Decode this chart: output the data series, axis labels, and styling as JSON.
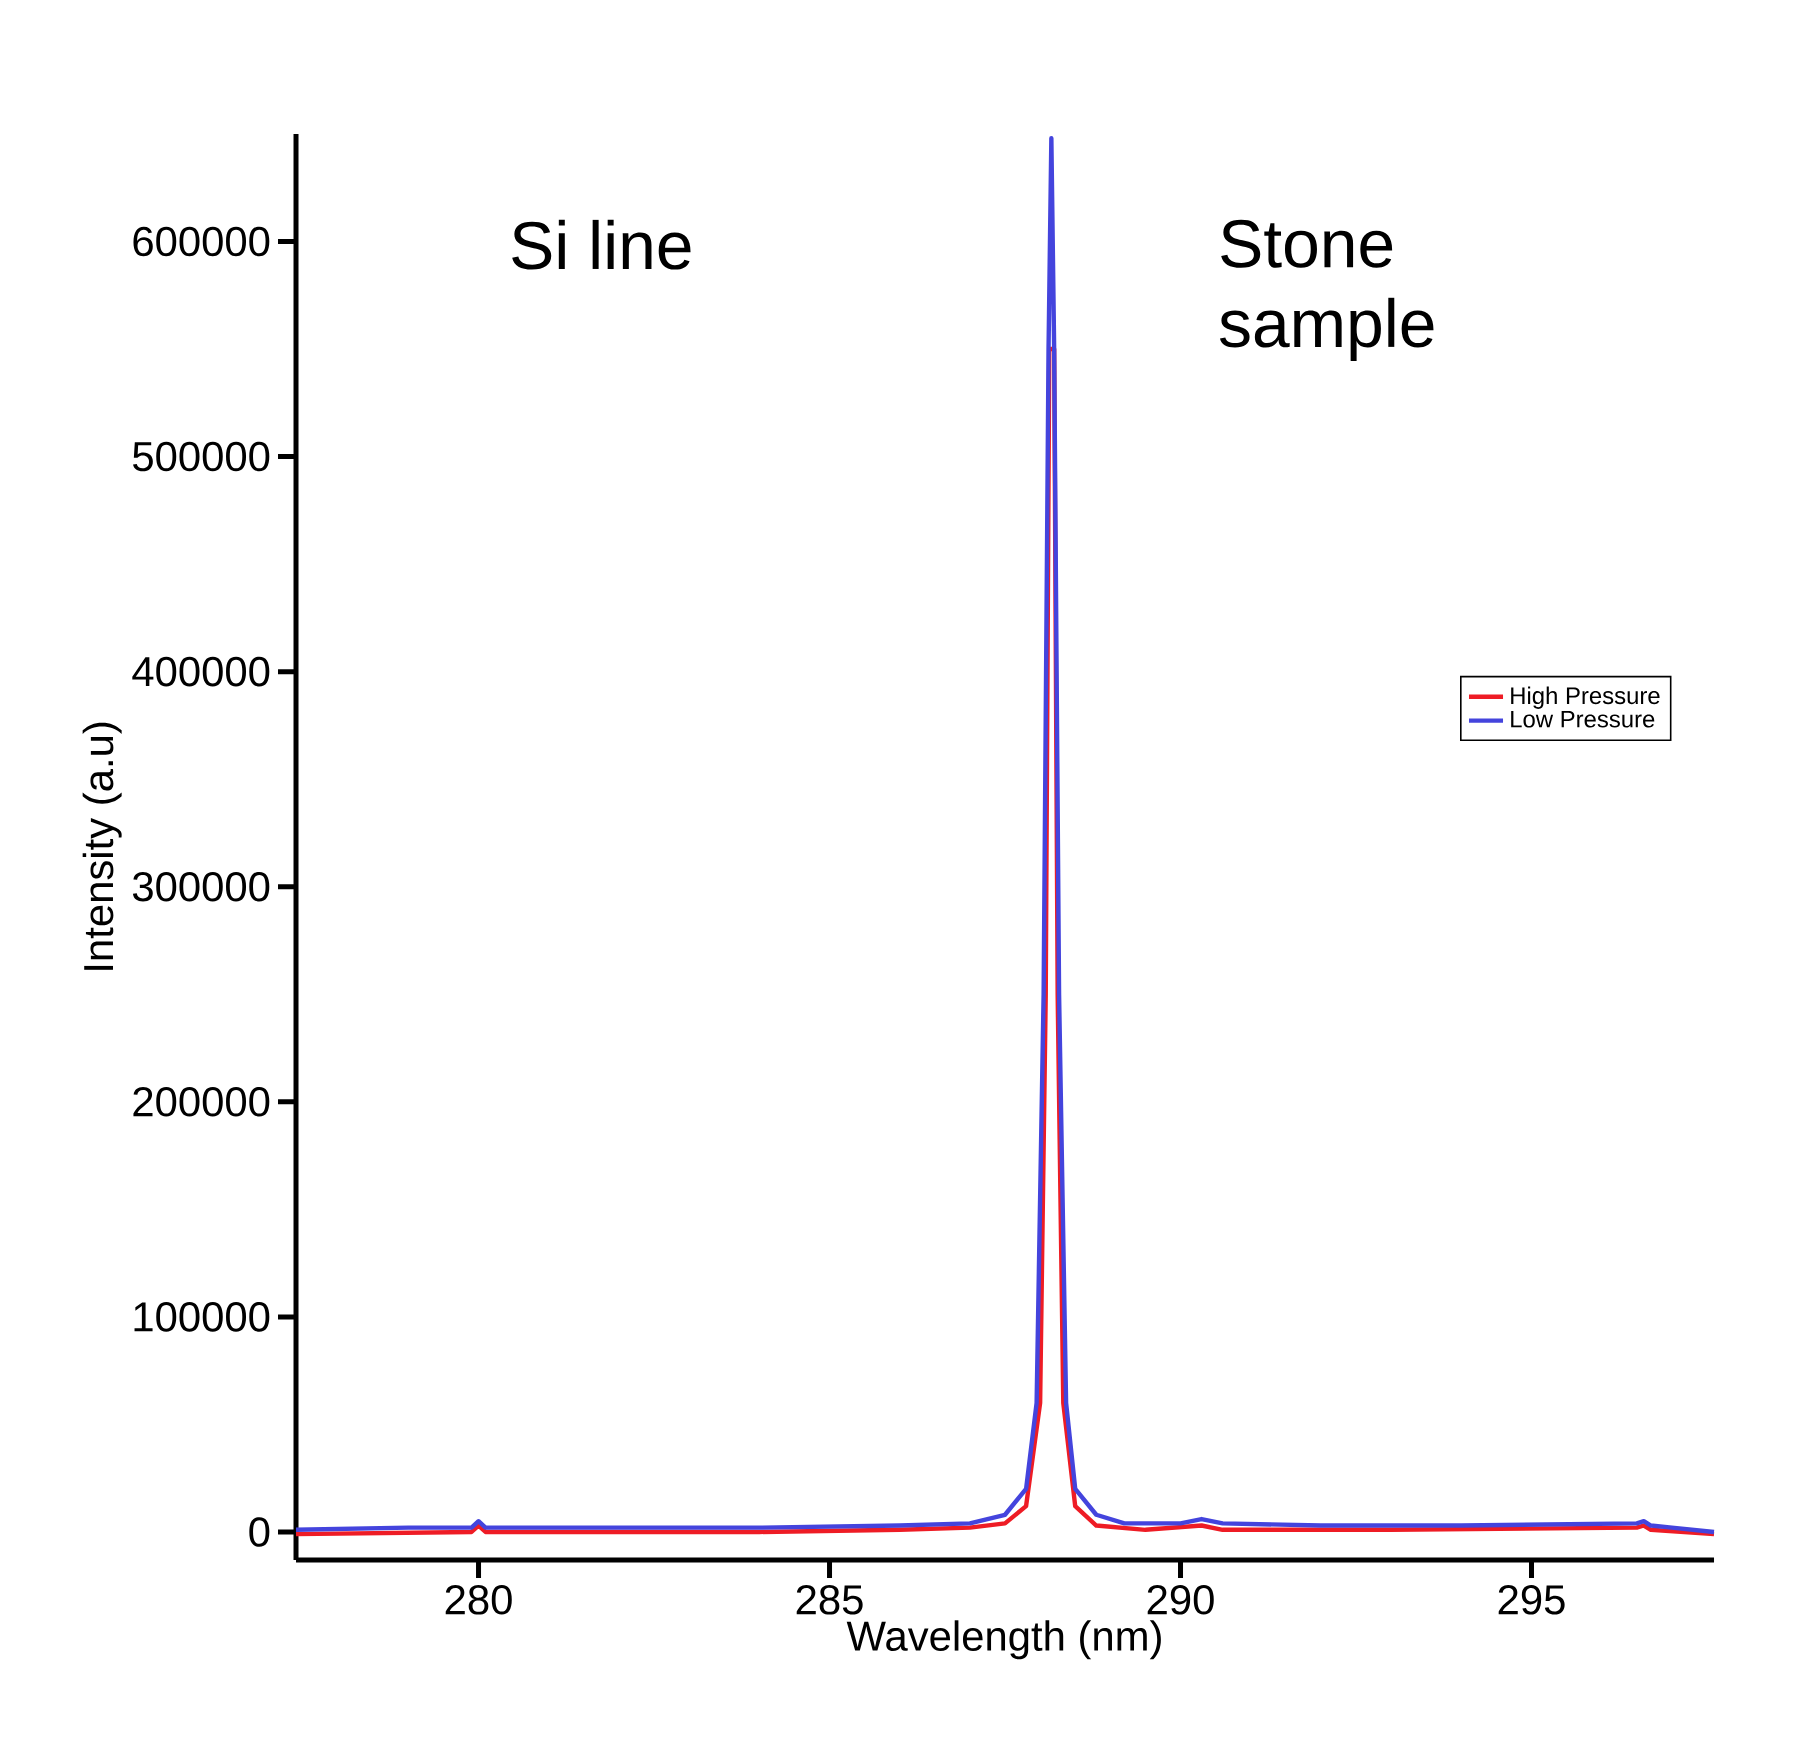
{
  "chart_data": {
    "type": "line",
    "xlabel": "Wavelength (nm)",
    "ylabel": "Intensity (a.u)",
    "annotations": [
      "Si line",
      "Stone sample"
    ],
    "xlim": [
      277.4,
      297.6
    ],
    "ylim": [
      -13000,
      650000
    ],
    "xticks": [
      280,
      285,
      290,
      295
    ],
    "yticks": [
      0,
      100000,
      200000,
      300000,
      400000,
      500000,
      600000
    ],
    "legend": "right",
    "grid": false,
    "line_style": "solid",
    "marker": "none",
    "series": [
      {
        "name": "High Pressure",
        "color": "#ee1c25",
        "x": [
          277.4,
          279.9,
          280.0,
          280.1,
          284,
          286,
          287,
          287.5,
          287.8,
          288.0,
          288.08,
          288.13,
          288.16,
          288.2,
          288.25,
          288.33,
          288.5,
          288.8,
          289.5,
          290.3,
          290.6,
          293,
          296.5,
          296.6,
          296.7,
          297.6
        ],
        "values": [
          -1000,
          0,
          3000,
          0,
          0,
          1000,
          2000,
          4000,
          12000,
          60000,
          250000,
          550000,
          null,
          550000,
          250000,
          60000,
          12000,
          3000,
          1000,
          3000,
          1000,
          1000,
          2000,
          3000,
          1000,
          -1000
        ]
      },
      {
        "name": "Low Pressure",
        "color": "#4444dd",
        "x": [
          277.4,
          279.0,
          279.9,
          280.0,
          280.1,
          282,
          284,
          286,
          287,
          287.5,
          287.8,
          287.95,
          288.05,
          288.12,
          288.16,
          288.2,
          288.27,
          288.37,
          288.5,
          288.8,
          289.2,
          290.0,
          290.3,
          290.6,
          292,
          294,
          296.5,
          296.6,
          296.7,
          297.0,
          297.6
        ],
        "values": [
          1000,
          2000,
          2000,
          5000,
          2000,
          2000,
          2000,
          3000,
          4000,
          8000,
          20000,
          60000,
          250000,
          550000,
          648000,
          550000,
          250000,
          60000,
          20000,
          8000,
          4000,
          4000,
          6000,
          4000,
          3000,
          3000,
          4000,
          5000,
          3000,
          2000,
          0
        ]
      }
    ]
  }
}
